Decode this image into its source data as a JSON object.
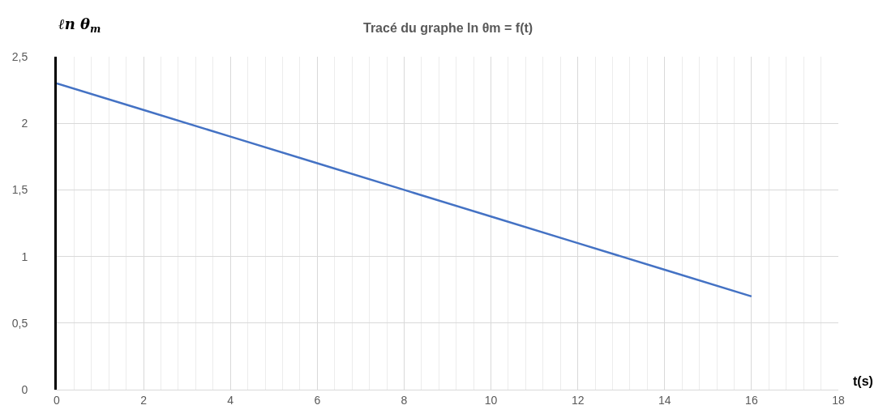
{
  "chart_data": {
    "type": "line",
    "title": "Tracé du graphe ln θm = f(t)",
    "ylabel": "ℓn θ$_{m}$",
    "xlabel": "t(s)",
    "x": [
      0,
      2,
      4,
      6,
      8,
      10,
      12,
      14,
      16
    ],
    "series": [
      {
        "color": "#4472c4",
        "values": [
          2.3,
          2.1,
          1.9,
          1.7,
          1.5,
          1.3,
          1.1,
          0.9,
          0.7
        ]
      }
    ],
    "xlim": [
      0,
      18
    ],
    "xticks": [
      0,
      2,
      4,
      6,
      8,
      10,
      12,
      14,
      16,
      18
    ],
    "ylim": [
      0,
      2.5
    ],
    "yticks": [
      0,
      {
        "value": 0.5,
        "label": "0,5"
      },
      1,
      {
        "value": 1.5,
        "label": "1,5"
      },
      2,
      {
        "value": 2.5,
        "label": "2,5"
      }
    ],
    "grid": true,
    "marker": "none",
    "line_style": "solid"
  }
}
